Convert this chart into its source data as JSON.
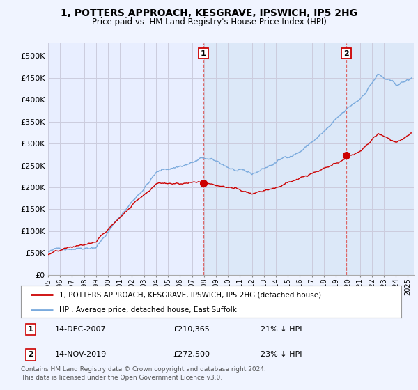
{
  "title": "1, POTTERS APPROACH, KESGRAVE, IPSWICH, IP5 2HG",
  "subtitle": "Price paid vs. HM Land Registry's House Price Index (HPI)",
  "ylabel_ticks": [
    "£0",
    "£50K",
    "£100K",
    "£150K",
    "£200K",
    "£250K",
    "£300K",
    "£350K",
    "£400K",
    "£450K",
    "£500K"
  ],
  "ytick_vals": [
    0,
    50000,
    100000,
    150000,
    200000,
    250000,
    300000,
    350000,
    400000,
    450000,
    500000
  ],
  "ylim": [
    0,
    530000
  ],
  "xlim_start": 1995.0,
  "xlim_end": 2025.5,
  "bg_color": "#f0f4ff",
  "plot_bg": "#e8eeff",
  "shade_color": "#dce8f8",
  "grid_color": "#ccccdd",
  "hpi_color": "#7aaadd",
  "price_color": "#cc0000",
  "marker1_x": 2007.95,
  "marker1_y": 210365,
  "marker1_label": "1",
  "marker2_x": 2019.87,
  "marker2_y": 272500,
  "marker2_label": "2",
  "annotation1_date": "14-DEC-2007",
  "annotation1_price": "£210,365",
  "annotation1_hpi": "21% ↓ HPI",
  "annotation2_date": "14-NOV-2019",
  "annotation2_price": "£272,500",
  "annotation2_hpi": "23% ↓ HPI",
  "legend_line1": "1, POTTERS APPROACH, KESGRAVE, IPSWICH, IP5 2HG (detached house)",
  "legend_line2": "HPI: Average price, detached house, East Suffolk",
  "footer": "Contains HM Land Registry data © Crown copyright and database right 2024.\nThis data is licensed under the Open Government Licence v3.0.",
  "xticks": [
    1995,
    1996,
    1997,
    1998,
    1999,
    2000,
    2001,
    2002,
    2003,
    2004,
    2005,
    2006,
    2007,
    2008,
    2009,
    2010,
    2011,
    2012,
    2013,
    2014,
    2015,
    2016,
    2017,
    2018,
    2019,
    2020,
    2021,
    2022,
    2023,
    2024,
    2025
  ]
}
